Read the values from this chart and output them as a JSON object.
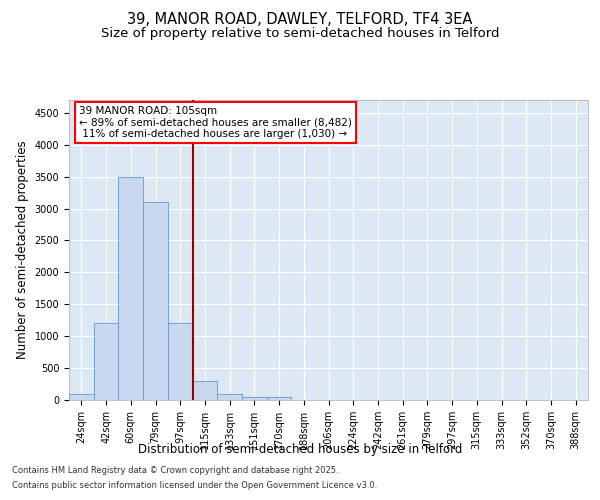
{
  "title_line1": "39, MANOR ROAD, DAWLEY, TELFORD, TF4 3EA",
  "title_line2": "Size of property relative to semi-detached houses in Telford",
  "xlabel": "Distribution of semi-detached houses by size in Telford",
  "ylabel": "Number of semi-detached properties",
  "categories": [
    "24sqm",
    "42sqm",
    "60sqm",
    "79sqm",
    "97sqm",
    "115sqm",
    "133sqm",
    "151sqm",
    "170sqm",
    "188sqm",
    "206sqm",
    "224sqm",
    "242sqm",
    "261sqm",
    "279sqm",
    "297sqm",
    "315sqm",
    "333sqm",
    "352sqm",
    "370sqm",
    "388sqm"
  ],
  "values": [
    100,
    1200,
    3500,
    3100,
    1200,
    300,
    100,
    50,
    50,
    0,
    0,
    0,
    0,
    0,
    0,
    0,
    0,
    0,
    0,
    0,
    0
  ],
  "bar_color": "#c8d8ee",
  "bar_edge_color": "#6699cc",
  "vline_x_index": 4.5,
  "vline_color": "#990000",
  "annotation_line1": "39 MANOR ROAD: 105sqm",
  "annotation_line2": "← 89% of semi-detached houses are smaller (8,482)",
  "annotation_line3": " 11% of semi-detached houses are larger (1,030) →",
  "ylim": [
    0,
    4700
  ],
  "yticks": [
    0,
    500,
    1000,
    1500,
    2000,
    2500,
    3000,
    3500,
    4000,
    4500
  ],
  "bg_color": "#dde8f5",
  "grid_color": "#ffffff",
  "footer_line1": "Contains HM Land Registry data © Crown copyright and database right 2025.",
  "footer_line2": "Contains public sector information licensed under the Open Government Licence v3.0.",
  "title_fontsize": 10.5,
  "subtitle_fontsize": 9.5,
  "tick_fontsize": 7,
  "xlabel_fontsize": 8.5,
  "ylabel_fontsize": 8.5,
  "annotation_fontsize": 7.5,
  "footer_fontsize": 6
}
